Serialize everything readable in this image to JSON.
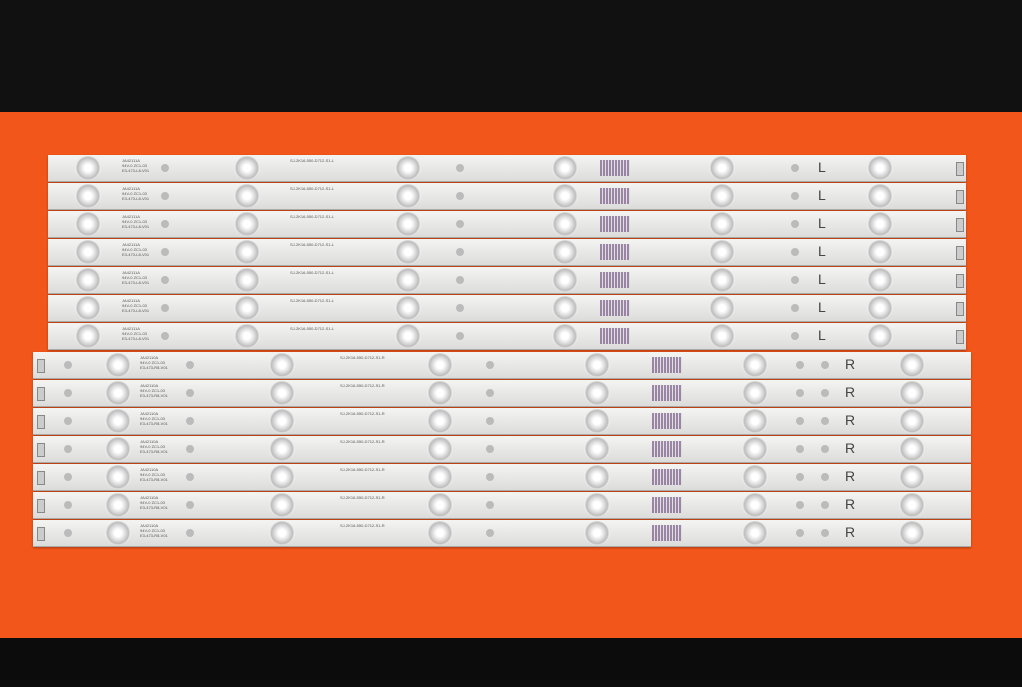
{
  "photo": {
    "subject": "LED backlight strips",
    "background_color": "#f2561a"
  },
  "left_strips": {
    "count": 7,
    "part": "JA42111A",
    "rating": "94V-0 ZC1-03",
    "model": "E3-473-L8-V01",
    "code": "SJ-2K16-550-D712-S1-L",
    "side": "L"
  },
  "right_strips": {
    "count": 7,
    "part": "JA42110A",
    "rating": "94V-0 ZC1-03",
    "model": "E3-473-R8-V01",
    "code": "SJ-2K16-550-D712-S1-R",
    "side": "R"
  }
}
